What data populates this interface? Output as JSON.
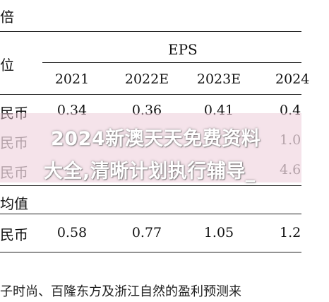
{
  "header": {
    "top_left_char": "倍",
    "unit_label": "位",
    "eps_label": "EPS",
    "years": [
      "2021",
      "2022E",
      "2023E",
      "2024"
    ]
  },
  "rows": [
    {
      "label": "民币",
      "values": [
        "0.34",
        "0.36",
        "0.41",
        "0.4"
      ]
    },
    {
      "label": "民币",
      "values": [
        "",
        "",
        "",
        "1.0"
      ]
    },
    {
      "label": "民币",
      "values": [
        "",
        "",
        "",
        "4.6"
      ]
    }
  ],
  "section2": {
    "label": "均值",
    "row": {
      "label": "民币",
      "values": [
        "0.58",
        "0.77",
        "1.05",
        "1.2"
      ]
    }
  },
  "watermark": {
    "line1": "2024新澳天天免费资料",
    "line2": "大全,清晰计划执行辅导_"
  },
  "caption": "子时尚、百隆东方及浙江自然的盈利预测来"
}
